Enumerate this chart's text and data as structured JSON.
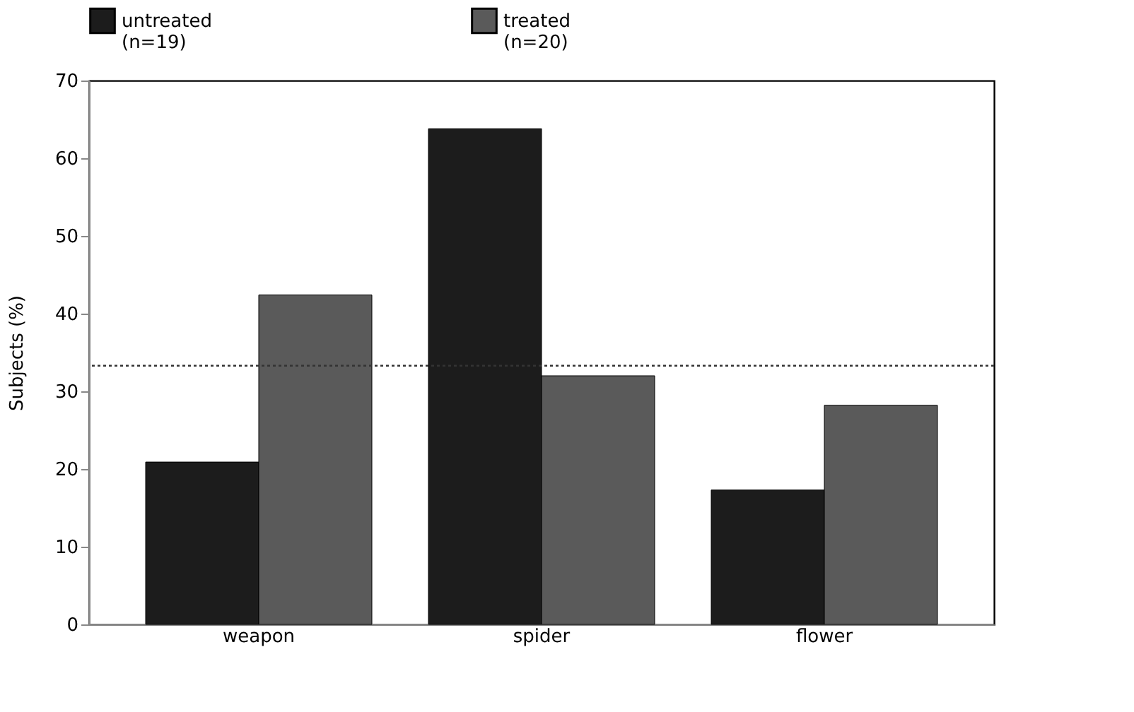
{
  "chart_data": {
    "type": "bar",
    "ylabel": "Subjects (%)",
    "categories": [
      "weapon",
      "spider",
      "flower"
    ],
    "series": [
      {
        "name": "untreated\n(n=19)",
        "color": "#1c1c1c",
        "values": [
          20.9,
          63.8,
          17.3
        ]
      },
      {
        "name": "treated\n(n=20)",
        "color": "#5a5a5a",
        "values": [
          42.4,
          32,
          28.2
        ]
      }
    ],
    "ylim": [
      0,
      70
    ],
    "yticks": [
      0,
      10,
      20,
      30,
      40,
      50,
      60,
      70
    ],
    "grid": false,
    "legend": "top left",
    "ref_lines": [
      {
        "axis": "y",
        "value": 33.3,
        "line_style": "dotted",
        "color": "#333333"
      }
    ]
  }
}
